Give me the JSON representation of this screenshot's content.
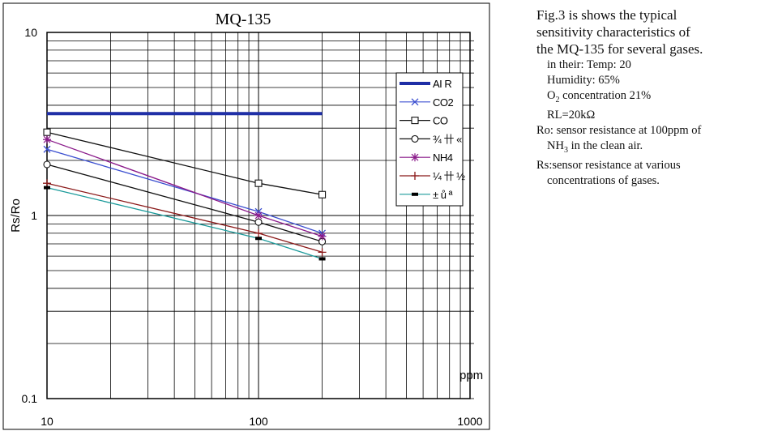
{
  "chart_data": {
    "type": "line",
    "title": "MQ-135",
    "xlabel": "ppm",
    "ylabel": "Rs/Ro",
    "xscale": "log",
    "yscale": "log",
    "xlim": [
      10,
      1000
    ],
    "ylim": [
      0.1,
      10
    ],
    "grid": true,
    "legend_position": "right",
    "x_ticks": [
      "10",
      "100",
      "1000"
    ],
    "y_ticks": [
      "0.1",
      "1",
      "10"
    ],
    "series": [
      {
        "name": "AI R",
        "color": "#1f2fa6",
        "marker": "none",
        "x": [
          10,
          200
        ],
        "y": [
          3.6,
          3.6
        ]
      },
      {
        "name": "CO2",
        "color": "#3b4fd0",
        "marker": "x",
        "x": [
          10,
          100,
          200
        ],
        "y": [
          2.3,
          1.05,
          0.8
        ]
      },
      {
        "name": "CO",
        "color": "#111111",
        "marker": "square",
        "x": [
          10,
          100,
          200
        ],
        "y": [
          2.85,
          1.5,
          1.3
        ]
      },
      {
        "name": "¾ 卄 «",
        "color": "#111111",
        "marker": "circle",
        "x": [
          10,
          100,
          200
        ],
        "y": [
          1.9,
          0.92,
          0.72
        ]
      },
      {
        "name": "NH4",
        "color": "#8a1a8a",
        "marker": "star",
        "x": [
          10,
          100,
          200
        ],
        "y": [
          2.6,
          1.0,
          0.77
        ]
      },
      {
        "name": "¼ 卄 ½",
        "color": "#8b1a1a",
        "marker": "plus",
        "x": [
          10,
          100,
          200
        ],
        "y": [
          1.5,
          0.8,
          0.63
        ]
      },
      {
        "name": "± ů ª",
        "color": "#1a9a9a",
        "marker": "bar",
        "x": [
          10,
          100,
          200
        ],
        "y": [
          1.42,
          0.75,
          0.58
        ]
      }
    ]
  },
  "caption": {
    "line1": "Fig.3 is shows the typical",
    "line2": "sensitivity characteristics of",
    "line3": "the MQ-135 for several gases.",
    "note_conditions": "in their: Temp: 20\u0000 \u0000",
    "note_humidity": "Humidity: 65%\u0000",
    "note_o2_prefix": "O",
    "note_o2_sub": "2",
    "note_o2_suffix": " concentration 21%",
    "note_rl": "RL=20kΩ",
    "note_ro_1": "Ro: sensor resistance at 100ppm of",
    "note_ro_2_prefix": "NH",
    "note_ro_2_sub": "3",
    "note_ro_2_suffix": " in the clean air.",
    "note_rs_1": "Rs:sensor resistance at various",
    "note_rs_2": "concentrations of gases."
  }
}
